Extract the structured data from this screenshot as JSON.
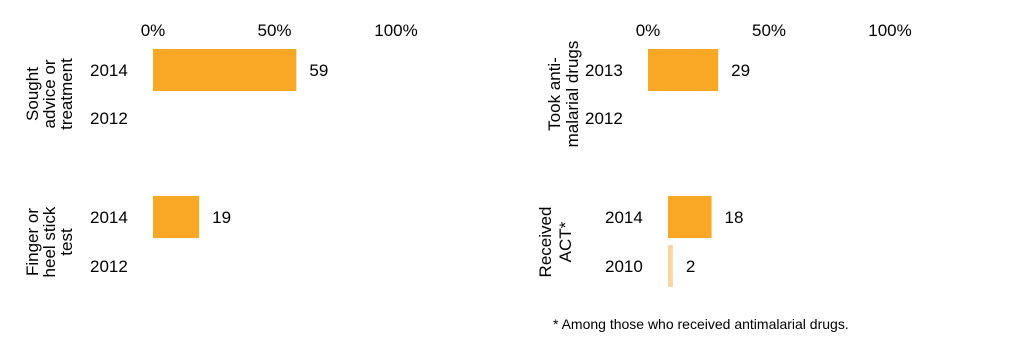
{
  "chart_data": [
    {
      "type": "bar",
      "orientation": "horizontal",
      "group_label": [
        "Sought",
        "advice or",
        "treatment"
      ],
      "categories": [
        "2014",
        "2012"
      ],
      "values": [
        59,
        null
      ],
      "x_ticks": [
        "0%",
        "50%",
        "100%"
      ],
      "xlim": [
        0,
        100
      ],
      "colors": [
        "#F9A825",
        "#F9A825"
      ]
    },
    {
      "type": "bar",
      "orientation": "horizontal",
      "group_label": [
        "Finger or",
        "heel stick",
        "test"
      ],
      "categories": [
        "2014",
        "2012"
      ],
      "values": [
        19,
        null
      ],
      "xlim": [
        0,
        100
      ],
      "colors": [
        "#F9A825",
        "#F9A825"
      ]
    },
    {
      "type": "bar",
      "orientation": "horizontal",
      "group_label": [
        "Took anti-",
        "malarial drugs"
      ],
      "categories": [
        "2013",
        "2012"
      ],
      "values": [
        29,
        null
      ],
      "x_ticks": [
        "0%",
        "50%",
        "100%"
      ],
      "xlim": [
        0,
        100
      ],
      "colors": [
        "#F9A825",
        "#F9A825"
      ]
    },
    {
      "type": "bar",
      "orientation": "horizontal",
      "group_label": [
        "Received",
        "ACT*"
      ],
      "categories": [
        "2014",
        "2010"
      ],
      "values": [
        18,
        2
      ],
      "xlim": [
        0,
        100
      ],
      "colors": [
        "#F9A825",
        "#FAD7A0"
      ]
    }
  ],
  "footnote": "* Among those who received antimalarial drugs."
}
